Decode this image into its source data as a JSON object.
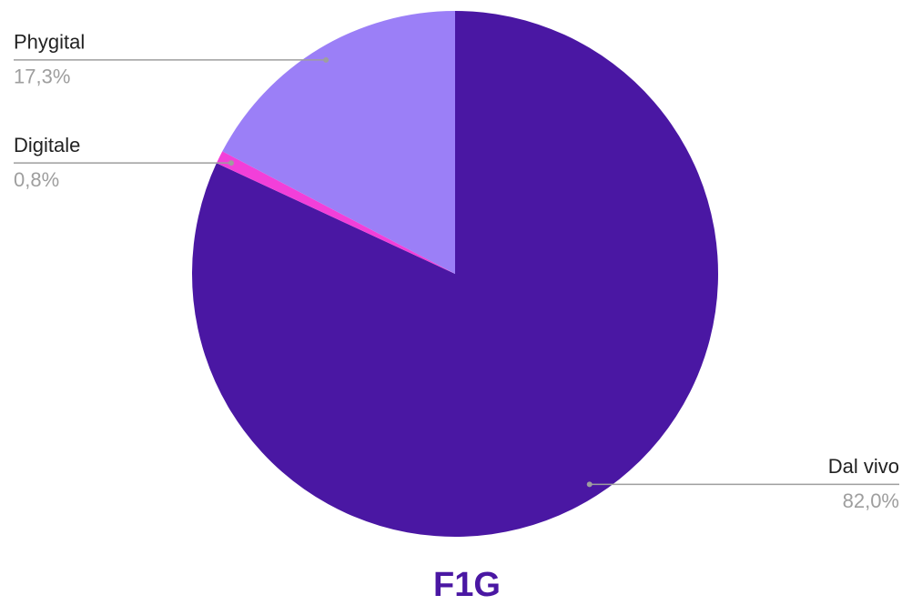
{
  "chart_data": {
    "type": "pie",
    "title": "F1G",
    "categories": [
      "Dal vivo",
      "Digitale",
      "Phygital"
    ],
    "values": [
      82.0,
      0.8,
      17.3
    ],
    "value_labels": [
      "82,0%",
      "0,8%",
      "17,3%"
    ],
    "colors": [
      "#4a17a3",
      "#f23fd9",
      "#9b7ff7"
    ]
  }
}
